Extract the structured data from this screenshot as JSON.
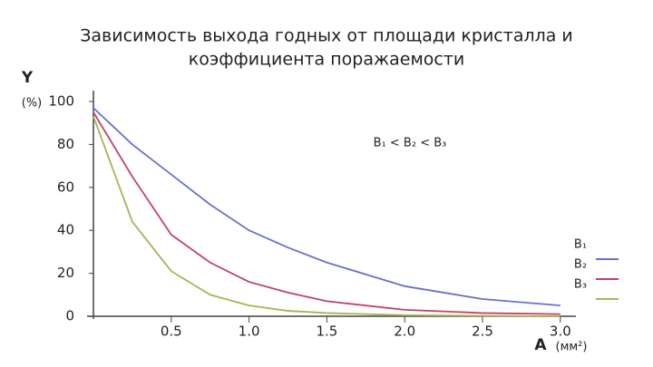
{
  "chart_data": {
    "type": "line",
    "title": [
      "Зависимость выхода годных от площади кристалла и",
      "коэффициента поражаемости"
    ],
    "y_label": "Y",
    "y_unit": "(%)",
    "x_label": "A",
    "x_unit": "(мм²)",
    "annotation": "B₁ < B₂ < B₃",
    "x": [
      0,
      0.25,
      0.5,
      0.75,
      1.0,
      1.25,
      1.5,
      2.0,
      2.5,
      3.0
    ],
    "series": [
      {
        "name": "B₁",
        "color": "#6b6fd1",
        "values": [
          97,
          80,
          66,
          52,
          40,
          32,
          25,
          14,
          8,
          5
        ]
      },
      {
        "name": "B₂",
        "color": "#c0416a",
        "values": [
          95,
          65,
          38,
          25,
          16,
          11,
          7,
          3,
          1.5,
          1
        ]
      },
      {
        "name": "B₃",
        "color": "#a8b35a",
        "values": [
          93,
          44,
          21,
          10,
          5,
          2.5,
          1.5,
          0.5,
          0.2,
          0
        ]
      }
    ],
    "xlim": [
      0,
      3.1
    ],
    "ylim": [
      0,
      100
    ],
    "xticks": [
      {
        "value": 0.5,
        "label": "0.5"
      },
      {
        "value": 1,
        "label": "1.0"
      },
      {
        "value": 1.5,
        "label": "1.5"
      },
      {
        "value": 2,
        "label": "2.0"
      },
      {
        "value": 2.5,
        "label": "2.5"
      },
      {
        "value": 3,
        "label": "3.0"
      }
    ],
    "yticks": [
      0,
      20,
      40,
      60,
      80,
      100
    ]
  }
}
